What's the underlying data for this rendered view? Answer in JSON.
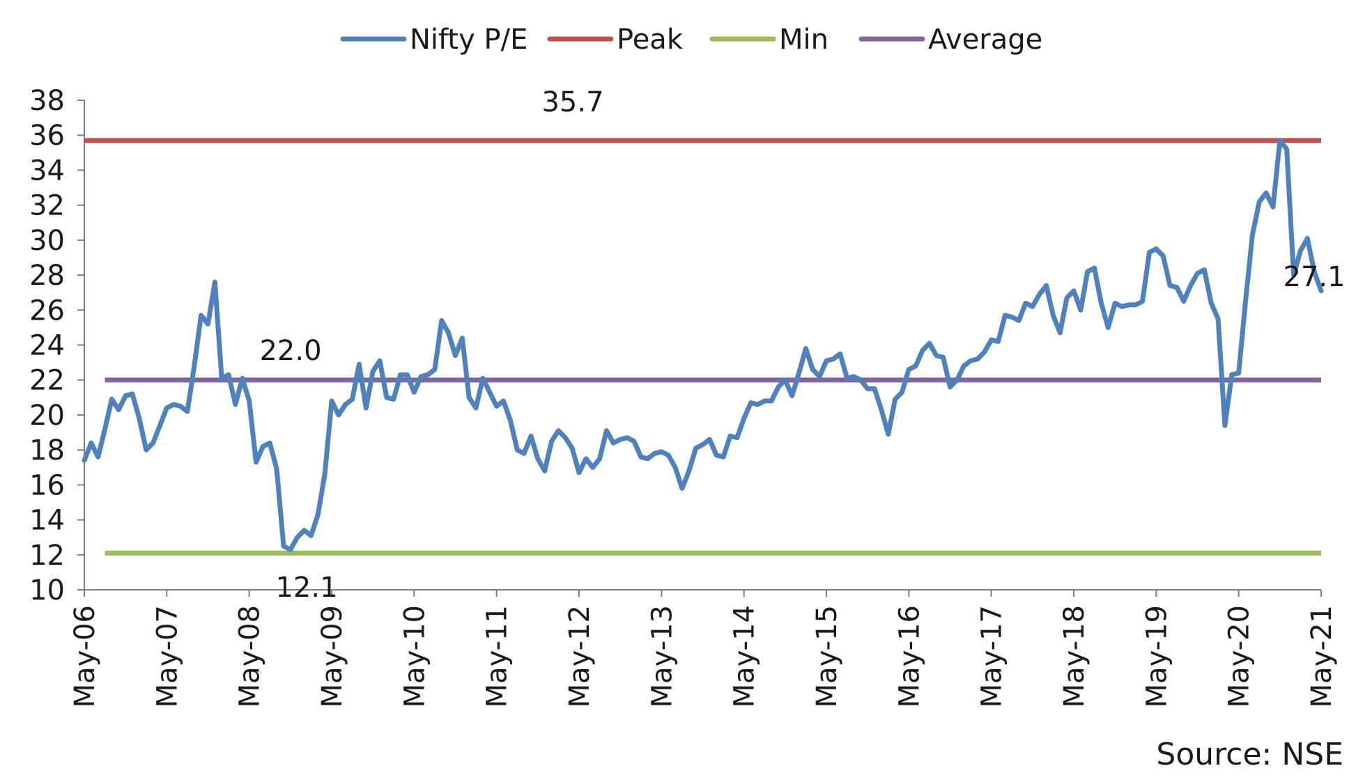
{
  "chart_data": {
    "type": "line",
    "title": "",
    "xlabel": "",
    "ylabel": "",
    "x_tick_labels": [
      "May-06",
      "May-07",
      "May-08",
      "May-09",
      "May-10",
      "May-11",
      "May-12",
      "May-13",
      "May-14",
      "May-15",
      "May-16",
      "May-17",
      "May-18",
      "May-19",
      "May-20",
      "May-21"
    ],
    "y_ticks": [
      10,
      12,
      14,
      16,
      18,
      20,
      22,
      24,
      26,
      28,
      30,
      32,
      34,
      36,
      38
    ],
    "ylim": [
      10,
      38
    ],
    "x_range": [
      "May-06",
      "May-21"
    ],
    "grid": false,
    "legend_position": "top",
    "series": [
      {
        "name": "Nifty P/E",
        "color": "#4F81BD",
        "x_start": "May-06",
        "frequency": "monthly",
        "values": [
          17.4,
          18.4,
          17.6,
          19.2,
          20.9,
          20.3,
          21.1,
          21.2,
          19.8,
          18.0,
          18.4,
          19.4,
          20.4,
          20.6,
          20.5,
          20.2,
          22.8,
          25.7,
          25.2,
          27.6,
          22.1,
          22.3,
          20.6,
          22.1,
          20.8,
          17.3,
          18.2,
          18.4,
          16.9,
          12.5,
          12.3,
          13.0,
          13.4,
          13.1,
          14.3,
          16.6,
          20.8,
          20.0,
          20.6,
          20.9,
          22.9,
          20.4,
          22.5,
          23.1,
          21.0,
          20.9,
          22.3,
          22.3,
          21.3,
          22.2,
          22.3,
          22.6,
          25.4,
          24.7,
          23.4,
          24.4,
          21.0,
          20.4,
          22.1,
          21.3,
          20.5,
          20.8,
          19.7,
          18.0,
          17.8,
          18.8,
          17.5,
          16.8,
          18.5,
          19.1,
          18.7,
          18.1,
          16.7,
          17.5,
          17.0,
          17.5,
          19.1,
          18.4,
          18.6,
          18.7,
          18.5,
          17.6,
          17.5,
          17.8,
          17.9,
          17.7,
          17.0,
          15.8,
          16.8,
          18.1,
          18.3,
          18.6,
          17.7,
          17.6,
          18.8,
          18.7,
          19.8,
          20.7,
          20.6,
          20.8,
          20.8,
          21.6,
          22.0,
          21.1,
          22.4,
          23.8,
          22.6,
          22.2,
          23.1,
          23.2,
          23.5,
          22.1,
          22.2,
          22.0,
          21.5,
          21.5,
          20.3,
          18.9,
          20.9,
          21.3,
          22.6,
          22.8,
          23.7,
          24.1,
          23.4,
          23.3,
          21.6,
          22.0,
          22.8,
          23.1,
          23.2,
          23.6,
          24.3,
          24.2,
          25.7,
          25.6,
          25.4,
          26.4,
          26.2,
          26.9,
          27.4,
          25.7,
          24.7,
          26.7,
          27.1,
          26.0,
          28.2,
          28.4,
          26.4,
          25.0,
          26.4,
          26.2,
          26.3,
          26.3,
          26.5,
          29.3,
          29.5,
          29.1,
          27.4,
          27.3,
          26.5,
          27.4,
          28.1,
          28.3,
          26.4,
          25.5,
          19.4,
          22.3,
          22.4,
          26.5,
          30.3,
          32.2,
          32.7,
          31.9,
          35.7,
          35.2,
          28.0,
          29.4,
          30.1,
          28.2,
          27.1
        ]
      },
      {
        "name": "Peak",
        "color": "#C0504D",
        "value": 35.7
      },
      {
        "name": "Min",
        "color": "#9BBB59",
        "value": 12.1
      },
      {
        "name": "Average",
        "color": "#8064A2",
        "value": 22.0
      }
    ],
    "annotations": [
      {
        "text": "35.7",
        "refers_to": "Peak"
      },
      {
        "text": "22.0",
        "refers_to": "Average"
      },
      {
        "text": "12.1",
        "refers_to": "Min"
      },
      {
        "text": "27.1",
        "refers_to": "Nifty P/E latest"
      }
    ]
  },
  "source_text": "Source: NSE"
}
